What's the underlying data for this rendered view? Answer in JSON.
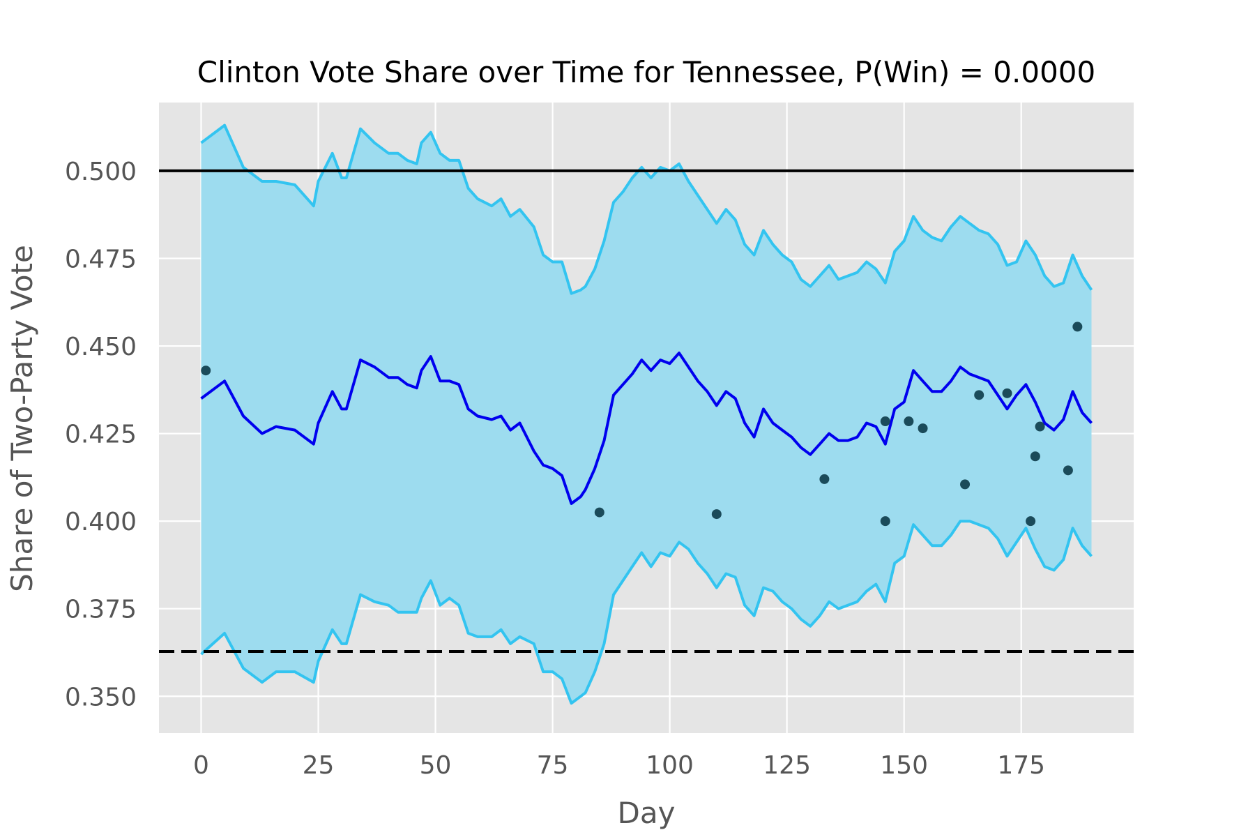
{
  "chart_data": {
    "type": "line",
    "title": "Clinton Vote Share over Time for Tennessee, P(Win) = 0.0000",
    "xlabel": "Day",
    "ylabel": "Share of Two-Party Vote",
    "xlim": [
      -9,
      199
    ],
    "ylim": [
      0.3395,
      0.5195
    ],
    "x_ticks": [
      0,
      25,
      50,
      75,
      100,
      125,
      150,
      175
    ],
    "x_tick_labels": [
      "0",
      "25",
      "50",
      "75",
      "100",
      "125",
      "150",
      "175"
    ],
    "y_ticks": [
      0.35,
      0.375,
      0.4,
      0.425,
      0.45,
      0.475,
      0.5
    ],
    "y_tick_labels": [
      "0.350",
      "0.375",
      "0.400",
      "0.425",
      "0.450",
      "0.475",
      "0.500"
    ],
    "grid": true,
    "background": "#e5e5e5",
    "reference_lines": [
      {
        "y": 0.5,
        "style": "solid",
        "color": "#000000"
      },
      {
        "y": 0.3628,
        "style": "dashed",
        "color": "#000000"
      }
    ],
    "band": {
      "fill": "#9ddcef",
      "edge_color": "#33c4f0",
      "x": [
        0,
        5,
        9,
        13,
        16,
        20,
        24,
        25,
        28,
        30,
        31,
        34,
        37,
        40,
        42,
        44,
        46,
        47,
        49,
        51,
        53,
        55,
        57,
        59,
        62,
        64,
        66,
        68,
        71,
        73,
        75,
        77,
        79,
        81,
        82,
        84,
        86,
        88,
        90,
        92,
        94,
        96,
        98,
        100,
        102,
        104,
        106,
        108,
        110,
        112,
        114,
        116,
        118,
        120,
        122,
        124,
        126,
        128,
        130,
        132,
        134,
        136,
        138,
        140,
        142,
        144,
        146,
        148,
        150,
        152,
        154,
        156,
        158,
        160,
        162,
        164,
        166,
        168,
        170,
        172,
        174,
        176,
        178,
        180,
        182,
        184,
        186,
        188,
        190
      ],
      "upper": [
        0.508,
        0.513,
        0.501,
        0.497,
        0.497,
        0.496,
        0.49,
        0.497,
        0.505,
        0.498,
        0.498,
        0.512,
        0.508,
        0.505,
        0.505,
        0.503,
        0.502,
        0.508,
        0.511,
        0.505,
        0.503,
        0.503,
        0.495,
        0.492,
        0.49,
        0.492,
        0.487,
        0.489,
        0.484,
        0.476,
        0.474,
        0.474,
        0.465,
        0.466,
        0.467,
        0.472,
        0.48,
        0.491,
        0.494,
        0.498,
        0.501,
        0.498,
        0.501,
        0.5,
        0.502,
        0.497,
        0.493,
        0.489,
        0.485,
        0.489,
        0.486,
        0.479,
        0.476,
        0.483,
        0.479,
        0.476,
        0.474,
        0.469,
        0.467,
        0.47,
        0.473,
        0.469,
        0.47,
        0.471,
        0.474,
        0.472,
        0.468,
        0.477,
        0.48,
        0.487,
        0.483,
        0.481,
        0.48,
        0.484,
        0.487,
        0.485,
        0.483,
        0.482,
        0.479,
        0.473,
        0.474,
        0.48,
        0.476,
        0.47,
        0.467,
        0.468,
        0.476,
        0.47,
        0.466
      ],
      "lower": [
        0.362,
        0.368,
        0.358,
        0.354,
        0.357,
        0.357,
        0.354,
        0.36,
        0.369,
        0.365,
        0.365,
        0.379,
        0.377,
        0.376,
        0.374,
        0.374,
        0.374,
        0.378,
        0.383,
        0.376,
        0.378,
        0.376,
        0.368,
        0.367,
        0.367,
        0.369,
        0.365,
        0.367,
        0.365,
        0.357,
        0.357,
        0.355,
        0.348,
        0.35,
        0.351,
        0.357,
        0.365,
        0.379,
        0.383,
        0.387,
        0.391,
        0.387,
        0.391,
        0.39,
        0.394,
        0.392,
        0.388,
        0.385,
        0.381,
        0.385,
        0.384,
        0.376,
        0.373,
        0.381,
        0.38,
        0.377,
        0.375,
        0.372,
        0.37,
        0.373,
        0.377,
        0.375,
        0.376,
        0.377,
        0.38,
        0.382,
        0.377,
        0.388,
        0.39,
        0.399,
        0.396,
        0.393,
        0.393,
        0.396,
        0.4,
        0.4,
        0.399,
        0.398,
        0.395,
        0.39,
        0.394,
        0.398,
        0.392,
        0.387,
        0.386,
        0.389,
        0.398,
        0.393,
        0.39
      ]
    },
    "series": [
      {
        "color": "#0000ee",
        "x": [
          0,
          5,
          9,
          13,
          16,
          20,
          24,
          25,
          28,
          30,
          31,
          34,
          37,
          40,
          42,
          44,
          46,
          47,
          49,
          51,
          53,
          55,
          57,
          59,
          62,
          64,
          66,
          68,
          71,
          73,
          75,
          77,
          79,
          81,
          82,
          84,
          86,
          88,
          90,
          92,
          94,
          96,
          98,
          100,
          102,
          104,
          106,
          108,
          110,
          112,
          114,
          116,
          118,
          120,
          122,
          124,
          126,
          128,
          130,
          132,
          134,
          136,
          138,
          140,
          142,
          144,
          146,
          148,
          150,
          152,
          154,
          156,
          158,
          160,
          162,
          164,
          166,
          168,
          170,
          172,
          174,
          176,
          178,
          180,
          182,
          184,
          186,
          188,
          190
        ],
        "values": [
          0.435,
          0.44,
          0.43,
          0.425,
          0.427,
          0.426,
          0.422,
          0.428,
          0.437,
          0.432,
          0.432,
          0.446,
          0.444,
          0.441,
          0.441,
          0.439,
          0.438,
          0.443,
          0.447,
          0.44,
          0.44,
          0.439,
          0.432,
          0.43,
          0.429,
          0.43,
          0.426,
          0.428,
          0.42,
          0.416,
          0.415,
          0.413,
          0.405,
          0.407,
          0.409,
          0.415,
          0.423,
          0.436,
          0.439,
          0.442,
          0.446,
          0.443,
          0.446,
          0.445,
          0.448,
          0.444,
          0.44,
          0.437,
          0.433,
          0.437,
          0.435,
          0.428,
          0.424,
          0.432,
          0.428,
          0.426,
          0.424,
          0.421,
          0.419,
          0.422,
          0.425,
          0.423,
          0.423,
          0.424,
          0.428,
          0.427,
          0.422,
          0.432,
          0.434,
          0.443,
          0.44,
          0.437,
          0.437,
          0.44,
          0.444,
          0.442,
          0.441,
          0.44,
          0.436,
          0.432,
          0.436,
          0.439,
          0.434,
          0.428,
          0.426,
          0.429,
          0.437,
          0.431,
          0.428
        ]
      }
    ],
    "points": {
      "color": "#1b4b5a",
      "x": [
        1,
        85,
        110,
        133,
        146,
        146,
        151,
        154,
        163,
        166,
        172,
        177,
        178,
        179,
        185,
        187
      ],
      "values": [
        0.443,
        0.4025,
        0.402,
        0.412,
        0.4,
        0.4285,
        0.4285,
        0.4265,
        0.4105,
        0.436,
        0.4365,
        0.4,
        0.4185,
        0.427,
        0.4145,
        0.4555
      ]
    }
  }
}
